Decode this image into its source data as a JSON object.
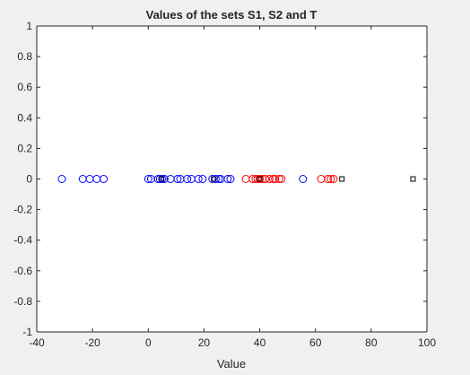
{
  "chart_data": {
    "type": "scatter",
    "title": "Values of the sets S1, S2 and T",
    "xlabel": "Value",
    "ylabel": "",
    "xlim": [
      -40,
      100
    ],
    "ylim": [
      -1,
      1
    ],
    "xticks": [
      -40,
      -20,
      0,
      20,
      40,
      60,
      80,
      100
    ],
    "yticks": [
      -1,
      -0.8,
      -0.6,
      -0.4,
      -0.2,
      0,
      0.2,
      0.4,
      0.6,
      0.8,
      1
    ],
    "xtick_labels": [
      "-40",
      "-20",
      "0",
      "20",
      "40",
      "60",
      "80",
      "100"
    ],
    "ytick_labels": [
      "-1",
      "-0.8",
      "-0.6",
      "-0.4",
      "-0.2",
      "0",
      "0.2",
      "0.4",
      "0.6",
      "0.8",
      "1"
    ],
    "grid": false,
    "background_color": "#ffffff",
    "figure_color": "#f0f0f0",
    "series": [
      {
        "marker": "circle",
        "color": "#0000ff",
        "x": [
          -31,
          -23.5,
          -21,
          -18.5,
          -16,
          0,
          1,
          3.5,
          4.2,
          5,
          5.8,
          8,
          10.5,
          11.5,
          14,
          15.5,
          18,
          19.5,
          23,
          24.2,
          25.3,
          26,
          28.5,
          29.5,
          55.5
        ],
        "y": [
          0,
          0,
          0,
          0,
          0,
          0,
          0,
          0,
          0,
          0,
          0,
          0,
          0,
          0,
          0,
          0,
          0,
          0,
          0,
          0,
          0,
          0,
          0,
          0,
          0
        ]
      },
      {
        "marker": "circle",
        "color": "#ff0000",
        "x": [
          35,
          37.5,
          38.5,
          39.2,
          40,
          41,
          42,
          43.5,
          44.8,
          45.5,
          47,
          47.8,
          62,
          64.5,
          65.5,
          66.5
        ],
        "y": [
          0,
          0,
          0,
          0,
          0,
          0,
          0,
          0,
          0,
          0,
          0,
          0,
          0,
          0,
          0,
          0
        ]
      },
      {
        "marker": "square",
        "color": "#000000",
        "x": [
          4.8,
          23.5,
          40,
          69.5,
          95
        ],
        "y": [
          0,
          0,
          0,
          0,
          0
        ]
      }
    ]
  }
}
